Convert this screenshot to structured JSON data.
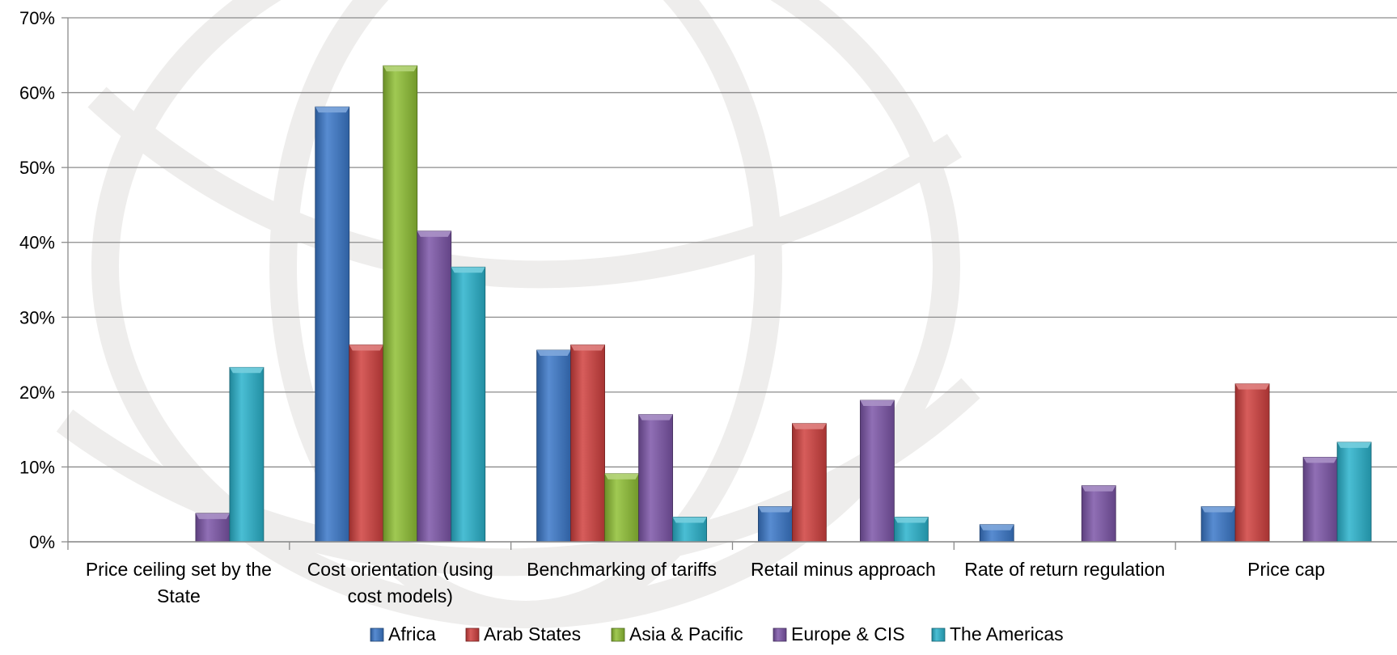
{
  "chart_data": {
    "type": "bar",
    "categories": [
      "Price ceiling set by the State",
      "Cost orientation (using cost models)",
      "Benchmarking of tariffs",
      "Retail minus approach",
      "Rate of return regulation",
      "Price cap"
    ],
    "category_lines": [
      [
        "Price ceiling set by the",
        "State"
      ],
      [
        "Cost orientation (using",
        "cost models)"
      ],
      [
        "Benchmarking of tariffs"
      ],
      [
        "Retail minus approach"
      ],
      [
        "Rate of return regulation"
      ],
      [
        "Price cap"
      ]
    ],
    "series": [
      {
        "name": "Africa",
        "color": "#3b78c9",
        "values": [
          0,
          58.1,
          25.6,
          4.7,
          2.3,
          4.7
        ]
      },
      {
        "name": "Arab States",
        "color": "#d0403e",
        "values": [
          0,
          26.3,
          26.3,
          15.8,
          0,
          21.1
        ]
      },
      {
        "name": "Asia & Pacific",
        "color": "#8fbf35",
        "values": [
          0,
          63.6,
          9.1,
          0,
          0,
          0
        ]
      },
      {
        "name": "Europe & CIS",
        "color": "#7c55a8",
        "values": [
          3.8,
          41.5,
          17.0,
          18.9,
          7.5,
          11.3
        ]
      },
      {
        "name": "The Americas",
        "color": "#2ab3cc",
        "values": [
          23.3,
          36.7,
          3.3,
          3.3,
          0,
          13.3
        ]
      }
    ],
    "ylim": [
      0,
      70
    ],
    "yticks": [
      "0%",
      "10%",
      "20%",
      "30%",
      "40%",
      "50%",
      "60%",
      "70%"
    ],
    "xlabel": "",
    "ylabel": "",
    "title": "",
    "grid": true,
    "legend_position": "bottom"
  }
}
